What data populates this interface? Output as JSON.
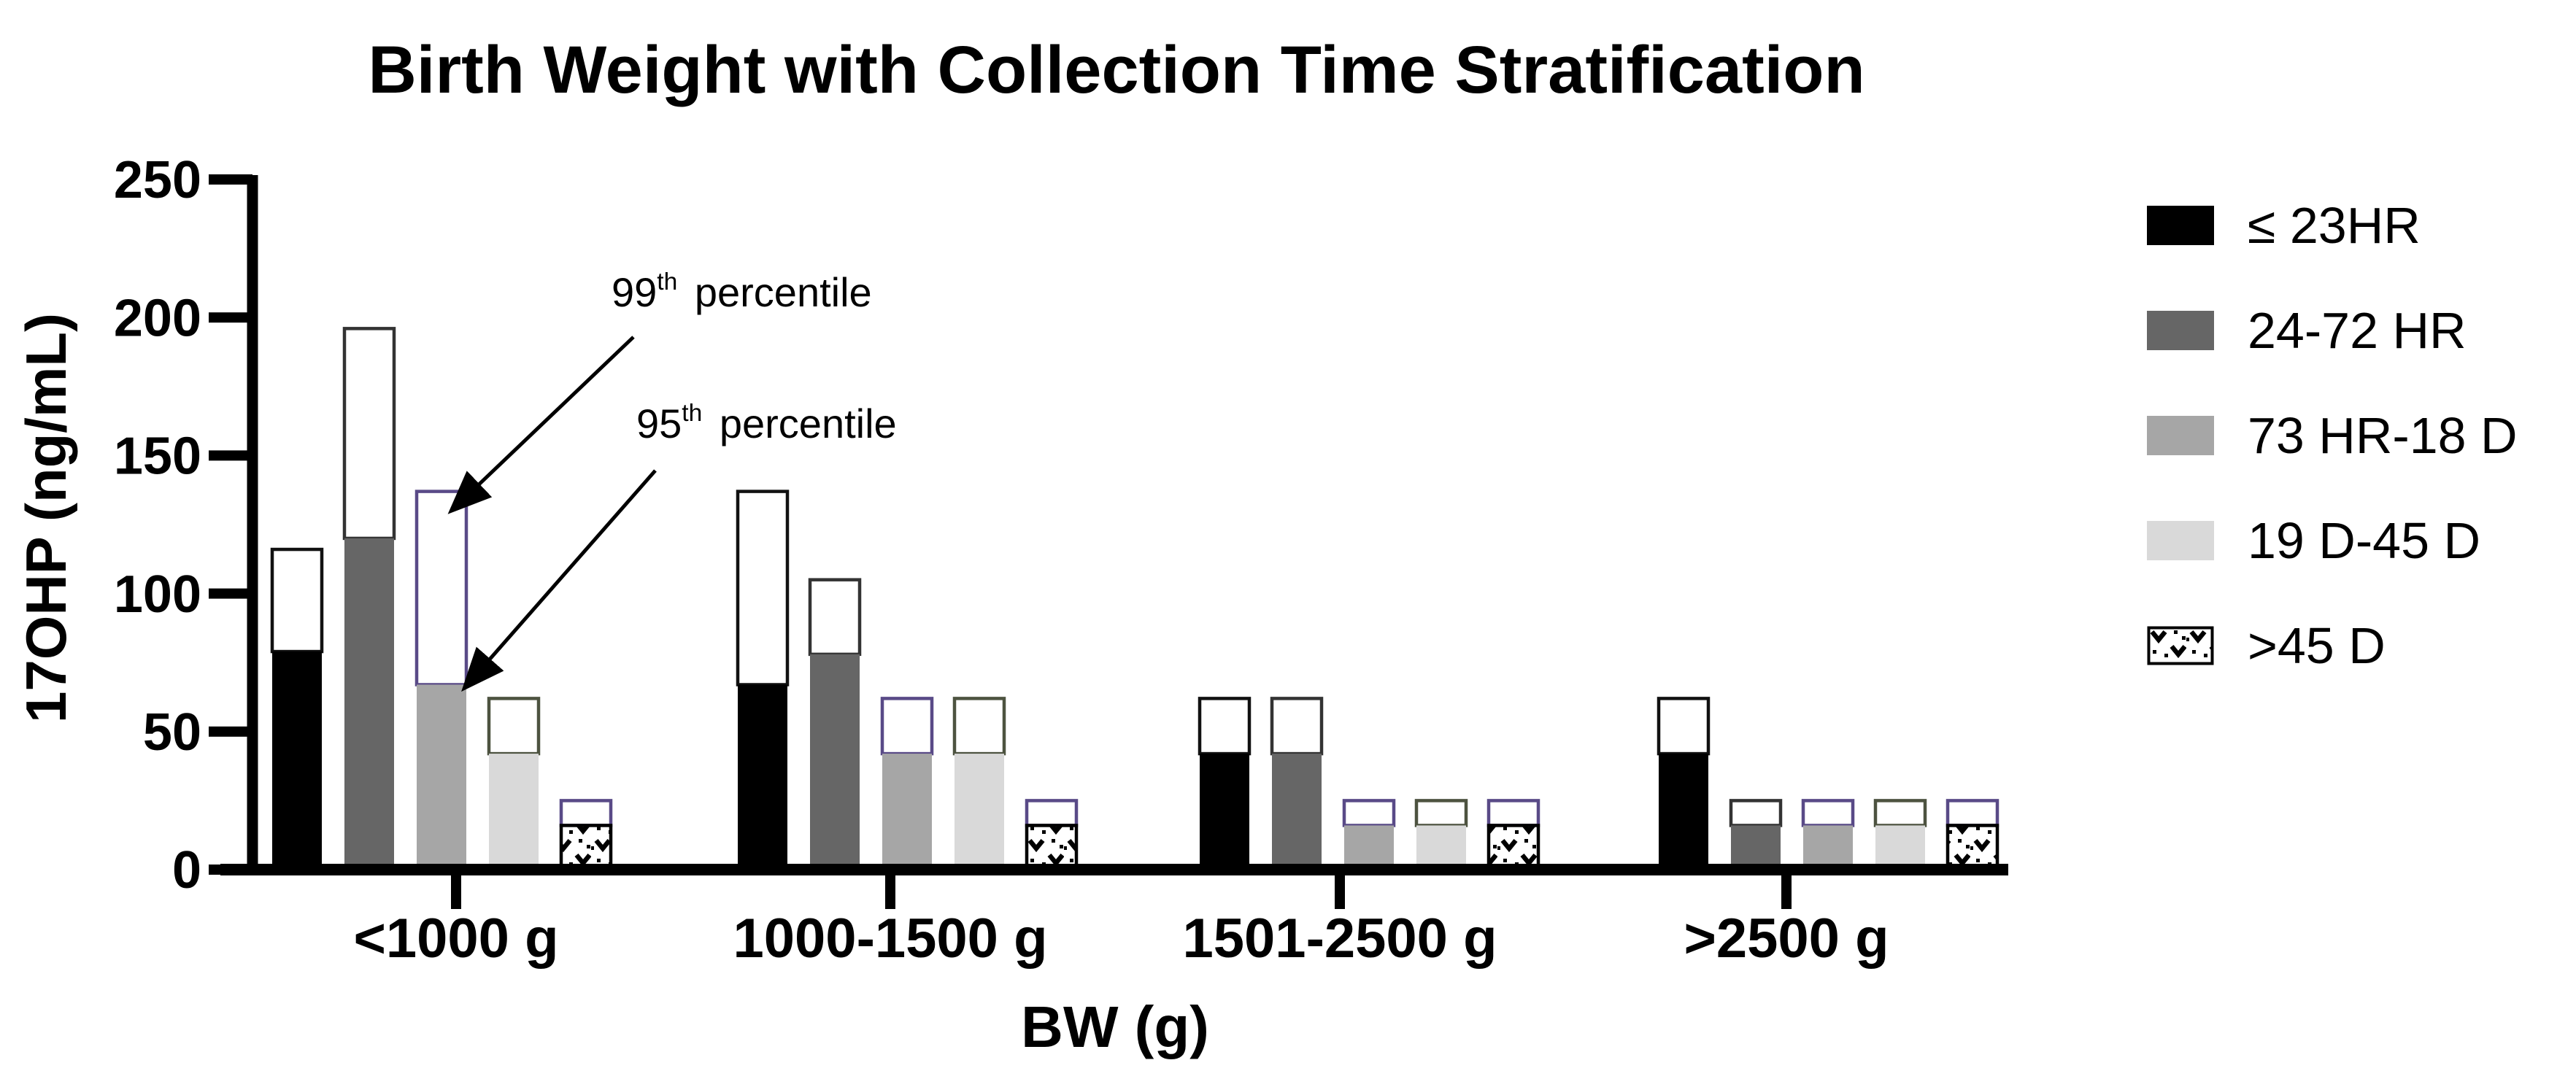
{
  "title": "Birth Weight with Collection Time Stratification",
  "chart_data": {
    "type": "bar",
    "title": "Birth Weight with Collection Time Stratification",
    "xlabel": "BW (g)",
    "ylabel": "17OHP (ng/mL)",
    "ylim": [
      0,
      250
    ],
    "yticks": [
      0,
      50,
      100,
      150,
      200,
      250
    ],
    "grid": false,
    "legend_position": "right",
    "categories": [
      "<1000 g",
      "1000-1500 g",
      "1501-2500 g",
      ">2500 g"
    ],
    "bar_style_note": "filled segment = 95th percentile, open outlined segment extends to 99th percentile",
    "series": [
      {
        "name": "≤ 23HR",
        "fill": "#000000",
        "outline": "#111111",
        "pattern": false,
        "p95": [
          79,
          67,
          42,
          42
        ],
        "p99": [
          116,
          137,
          62,
          62
        ]
      },
      {
        "name": "24-72 HR",
        "fill": "#666666",
        "outline": "#333333",
        "pattern": false,
        "p95": [
          120,
          78,
          42,
          16
        ],
        "p99": [
          196,
          105,
          62,
          25
        ]
      },
      {
        "name": "73 HR-18 D",
        "fill": "#a6a6a6",
        "outline": "#594a87",
        "pattern": false,
        "p95": [
          67,
          42,
          16,
          16
        ],
        "p99": [
          137,
          62,
          25,
          25
        ]
      },
      {
        "name": "19 D-45 D",
        "fill": "#d9d9d9",
        "outline": "#4d5340",
        "pattern": false,
        "p95": [
          42,
          42,
          16,
          16
        ],
        "p99": [
          62,
          62,
          25,
          25
        ]
      },
      {
        "name": ">45 D",
        "fill": "#ffffff",
        "outline": "#594a87",
        "pattern": true,
        "p95": [
          16,
          16,
          16,
          16
        ],
        "p99": [
          25,
          25,
          25,
          25
        ]
      }
    ],
    "annotations": [
      {
        "value": "99",
        "sup": "th",
        "rest": " percentile",
        "target": "p99",
        "target_series_index": 2,
        "target_category_index": 0,
        "target_value": 137,
        "arrow_start": [
          868,
          462
        ]
      },
      {
        "value": "95",
        "sup": "th",
        "rest": " percentile",
        "target": "p95",
        "target_series_index": 2,
        "target_category_index": 0,
        "target_value": 67,
        "arrow_start": [
          898,
          645
        ]
      }
    ],
    "colors": {
      "axis": "#000000",
      "annotation_arrow": "#000000",
      "pattern_mark": "#000000",
      "background": "#ffffff"
    }
  }
}
